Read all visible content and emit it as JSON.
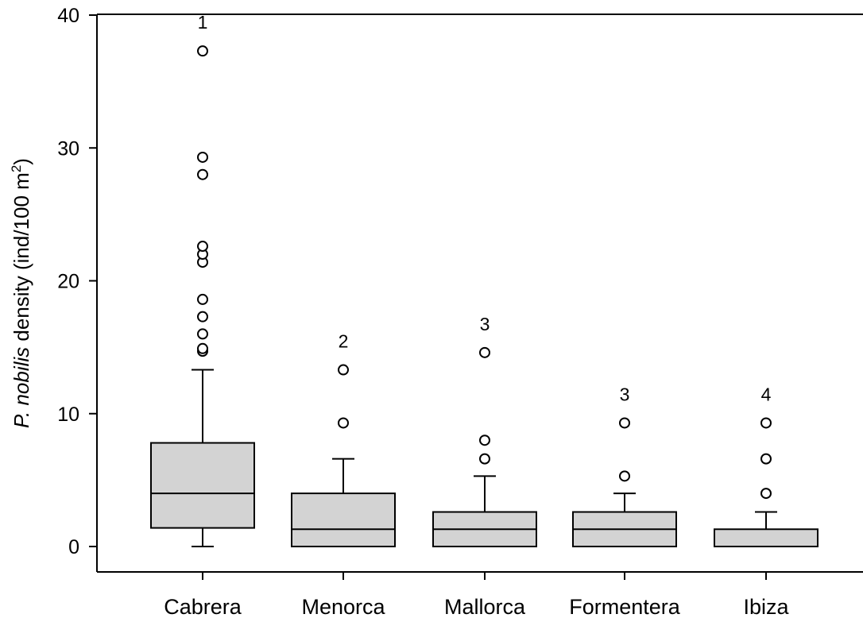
{
  "chart_data": {
    "type": "box",
    "ylabel_italic": "P. nobilis",
    "ylabel_rest": " density (ind/100 m",
    "ylabel_sup": "2",
    "ylabel_close": ")",
    "ylim": [
      0,
      40
    ],
    "yticks": [
      0,
      10,
      20,
      30,
      40
    ],
    "categories": [
      "Cabrera",
      "Menorca",
      "Mallorca",
      "Formentera",
      "Ibiza"
    ],
    "boxes": [
      {
        "min": 0,
        "q1": 1.4,
        "median": 4.0,
        "q3": 7.8,
        "max": 13.3,
        "outliers": [
          14.7,
          14.9,
          16.0,
          17.3,
          18.6,
          21.4,
          22.0,
          22.6,
          28.0,
          29.3,
          37.3
        ],
        "group_label": "1"
      },
      {
        "min": 0,
        "q1": 0,
        "median": 1.3,
        "q3": 4.0,
        "max": 6.6,
        "outliers": [
          9.3,
          13.3
        ],
        "group_label": "2"
      },
      {
        "min": 0,
        "q1": 0,
        "median": 1.3,
        "q3": 2.6,
        "max": 5.3,
        "outliers": [
          6.6,
          8.0,
          14.6
        ],
        "group_label": "3"
      },
      {
        "min": 0,
        "q1": 0,
        "median": 1.3,
        "q3": 2.6,
        "max": 4.0,
        "outliers": [
          5.3,
          9.3
        ],
        "group_label": "3"
      },
      {
        "min": 0,
        "q1": 0,
        "median": 0,
        "q3": 1.3,
        "max": 2.6,
        "outliers": [
          4.0,
          6.6,
          9.3
        ],
        "group_label": "4"
      }
    ]
  }
}
